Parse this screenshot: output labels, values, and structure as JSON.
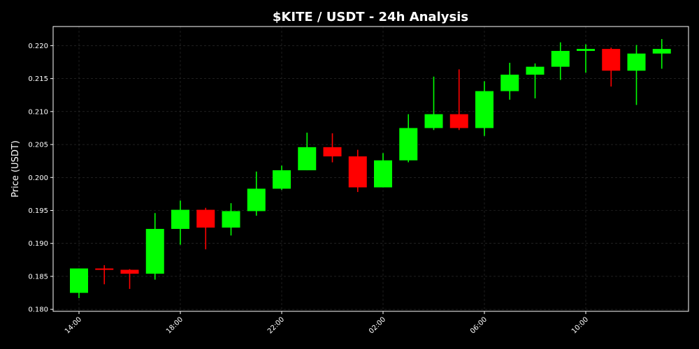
{
  "chart_data": {
    "type": "candlestick",
    "title": "$KITE / USDT - 24h Analysis",
    "xlabel": "",
    "ylabel": "Price (USDT)",
    "x_tick_labels": [
      "14:00",
      "18:00",
      "22:00",
      "02:00",
      "06:00",
      "10:00"
    ],
    "x_tick_candle_index": [
      0,
      4,
      8,
      12,
      16,
      20
    ],
    "y_ticks": [
      0.18,
      0.185,
      0.19,
      0.195,
      0.2,
      0.205,
      0.21,
      0.215,
      0.22
    ],
    "y_tick_labels": [
      "0.180",
      "0.185",
      "0.190",
      "0.195",
      "0.200",
      "0.205",
      "0.210",
      "0.215",
      "0.220"
    ],
    "ylim": [
      0.1797,
      0.2229
    ],
    "grid": true,
    "colors": {
      "background": "#000000",
      "up": "#00ff00",
      "down": "#ff0000",
      "text": "#ffffff",
      "grid": "#333333"
    },
    "candles": [
      {
        "open": 0.1825,
        "high": 0.1862,
        "low": 0.1817,
        "close": 0.1862
      },
      {
        "open": 0.1862,
        "high": 0.1867,
        "low": 0.1838,
        "close": 0.186
      },
      {
        "open": 0.186,
        "high": 0.1861,
        "low": 0.1831,
        "close": 0.1854
      },
      {
        "open": 0.1854,
        "high": 0.1946,
        "low": 0.1845,
        "close": 0.1922
      },
      {
        "open": 0.1922,
        "high": 0.1965,
        "low": 0.1898,
        "close": 0.1951
      },
      {
        "open": 0.1951,
        "high": 0.1954,
        "low": 0.1891,
        "close": 0.1924
      },
      {
        "open": 0.1924,
        "high": 0.1961,
        "low": 0.1912,
        "close": 0.1949
      },
      {
        "open": 0.1949,
        "high": 0.2009,
        "low": 0.1942,
        "close": 0.1983
      },
      {
        "open": 0.1983,
        "high": 0.2018,
        "low": 0.1981,
        "close": 0.2011
      },
      {
        "open": 0.2011,
        "high": 0.2068,
        "low": 0.2011,
        "close": 0.2046
      },
      {
        "open": 0.2046,
        "high": 0.2067,
        "low": 0.2023,
        "close": 0.2032
      },
      {
        "open": 0.2032,
        "high": 0.2042,
        "low": 0.1978,
        "close": 0.1985
      },
      {
        "open": 0.1985,
        "high": 0.2037,
        "low": 0.1985,
        "close": 0.2026
      },
      {
        "open": 0.2026,
        "high": 0.2096,
        "low": 0.2023,
        "close": 0.2075
      },
      {
        "open": 0.2075,
        "high": 0.2153,
        "low": 0.2072,
        "close": 0.2096
      },
      {
        "open": 0.2096,
        "high": 0.2164,
        "low": 0.2072,
        "close": 0.2075
      },
      {
        "open": 0.2075,
        "high": 0.2146,
        "low": 0.2063,
        "close": 0.2131
      },
      {
        "open": 0.2131,
        "high": 0.2174,
        "low": 0.2118,
        "close": 0.2156
      },
      {
        "open": 0.2156,
        "high": 0.2173,
        "low": 0.212,
        "close": 0.2168
      },
      {
        "open": 0.2168,
        "high": 0.2205,
        "low": 0.2148,
        "close": 0.2192
      },
      {
        "open": 0.2192,
        "high": 0.2202,
        "low": 0.2159,
        "close": 0.2195
      },
      {
        "open": 0.2195,
        "high": 0.2197,
        "low": 0.2138,
        "close": 0.2162
      },
      {
        "open": 0.2162,
        "high": 0.2201,
        "low": 0.211,
        "close": 0.2188
      },
      {
        "open": 0.2188,
        "high": 0.221,
        "low": 0.2165,
        "close": 0.2195
      }
    ]
  }
}
